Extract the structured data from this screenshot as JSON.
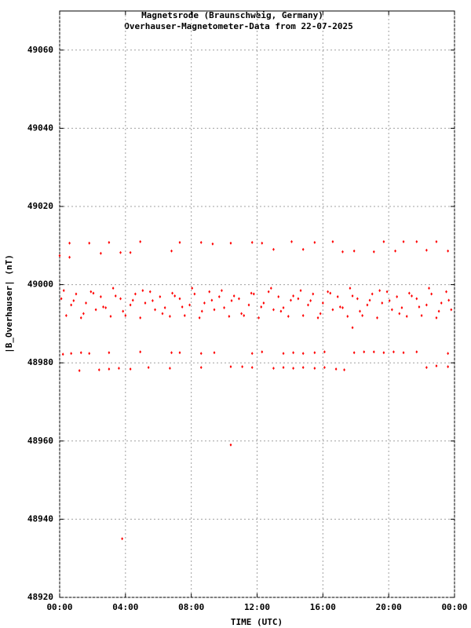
{
  "chart_data": {
    "type": "scatter",
    "title": "Magnetsrode (Braunschweig, Germany)",
    "subtitle": "Overhauser-Magnetometer-Data from 22-07-2025",
    "x_label": "TIME (UTC)",
    "y_label": "|B_Overhauser| (nT)",
    "color": "#ff0000",
    "grid": true,
    "xlim": [
      0,
      24
    ],
    "xticks": [
      {
        "value": 0,
        "label": "00:00"
      },
      {
        "value": 4,
        "label": "04:00"
      },
      {
        "value": 8,
        "label": "08:00"
      },
      {
        "value": 12,
        "label": "12:00"
      },
      {
        "value": 16,
        "label": "16:00"
      },
      {
        "value": 20,
        "label": "20:00"
      },
      {
        "value": 24,
        "label": "00:00"
      }
    ],
    "ylim": [
      48920,
      49070
    ],
    "yticks": [
      48920,
      48940,
      48960,
      48980,
      49000,
      49020,
      49040,
      49060
    ],
    "x": [
      0.0,
      0.6,
      0.6,
      1.8,
      2.5,
      3.0,
      3.7,
      4.3,
      4.9,
      6.8,
      7.3,
      8.6,
      9.3,
      10.4,
      11.7,
      12.3,
      13.0,
      14.1,
      14.8,
      15.5,
      16.6,
      17.2,
      17.9,
      19.1,
      19.7,
      20.4,
      20.9,
      21.7,
      22.3,
      22.9,
      23.6,
      0.2,
      0.7,
      1.3,
      1.8,
      3.0,
      4.9,
      6.8,
      7.3,
      8.6,
      9.4,
      11.7,
      12.3,
      13.6,
      14.2,
      14.8,
      15.5,
      16.1,
      17.9,
      18.5,
      19.1,
      19.7,
      20.3,
      20.9,
      21.7,
      23.6,
      1.2,
      2.4,
      3.0,
      3.6,
      4.3,
      5.4,
      6.7,
      8.6,
      10.4,
      11.1,
      11.7,
      13.0,
      13.6,
      14.2,
      14.8,
      15.5,
      16.1,
      16.8,
      17.3,
      22.3,
      22.9,
      23.6,
      10.4,
      3.8,
      17.8,
      0.1,
      0.4,
      0.7,
      1.0,
      1.3,
      1.6,
      1.9,
      2.2,
      2.5,
      2.8,
      3.1,
      3.4,
      3.7,
      4.0,
      4.3,
      4.6,
      4.9,
      5.2,
      5.5,
      5.8,
      6.1,
      6.4,
      6.7,
      7.0,
      7.3,
      7.6,
      7.9,
      8.2,
      8.5,
      8.8,
      9.1,
      9.4,
      9.7,
      10.0,
      10.3,
      10.6,
      10.9,
      11.2,
      11.5,
      11.8,
      12.1,
      12.4,
      12.7,
      13.0,
      13.3,
      13.6,
      13.9,
      14.2,
      14.5,
      14.8,
      15.1,
      15.4,
      15.7,
      16.0,
      16.3,
      16.6,
      16.9,
      17.2,
      17.5,
      17.8,
      18.1,
      18.4,
      18.7,
      19.0,
      19.3,
      19.6,
      19.9,
      20.2,
      20.5,
      20.8,
      21.1,
      21.4,
      21.7,
      22.0,
      22.3,
      22.6,
      22.9,
      23.2,
      23.5,
      23.8,
      0.25,
      0.85,
      1.45,
      2.05,
      2.65,
      3.25,
      3.85,
      4.45,
      5.05,
      5.65,
      6.25,
      6.85,
      7.45,
      8.05,
      8.65,
      9.25,
      9.85,
      10.45,
      11.05,
      11.65,
      12.25,
      12.85,
      13.45,
      14.05,
      14.65,
      15.25,
      15.85,
      16.45,
      17.05,
      17.65,
      18.25,
      18.85,
      19.45,
      20.05,
      20.65,
      21.25,
      21.85,
      22.45,
      23.05,
      23.65
    ],
    "values": [
      49007.4,
      49010.6,
      49007,
      49010.6,
      49008,
      49010.8,
      49008.2,
      49008.2,
      49011,
      49008.6,
      49010.8,
      49010.8,
      49010.4,
      49010.6,
      49010.8,
      49010.6,
      49009,
      49011,
      49009,
      49010.8,
      49011,
      49008.4,
      49008.6,
      49008.4,
      49011,
      49008.6,
      49011,
      49011,
      49008.8,
      49011,
      49008.6,
      48982.2,
      48982.4,
      48982.6,
      48982.4,
      48982.6,
      48982.8,
      48982.6,
      48982.6,
      48982.4,
      48982.6,
      48982.4,
      48982.8,
      48982.4,
      48982.6,
      48982.4,
      48982.6,
      48982.8,
      48982.6,
      48982.8,
      48982.8,
      48982.6,
      48982.8,
      48982.6,
      48982.8,
      48982.4,
      48978,
      48978.2,
      48978.4,
      48978.6,
      48978.4,
      48978.8,
      48978.6,
      48978.8,
      48979,
      48979,
      48978.8,
      48978.6,
      48978.8,
      48978.6,
      48978.8,
      48978.6,
      48978.8,
      48978.4,
      48978.2,
      48978.8,
      48979.2,
      48979,
      48959,
      48935,
      48989,
      48996.4,
      48992.1,
      48994.8,
      48997.6,
      48991.5,
      48995.3,
      48998.2,
      48993.6,
      48996.9,
      48994.1,
      48991.9,
      48997.1,
      48996.4,
      48992.1,
      48994.8,
      48997.6,
      48991.5,
      48995.3,
      48998.2,
      48993.6,
      48996.9,
      48994.1,
      48991.9,
      48997.1,
      48996.4,
      48992.1,
      48994.8,
      48997.6,
      48991.5,
      48995.3,
      48998.2,
      48993.6,
      48996.9,
      48994.1,
      48991.9,
      48997.1,
      48996.4,
      48992.1,
      48994.8,
      48997.6,
      48991.5,
      48995.3,
      48998.2,
      48993.6,
      48996.9,
      48994.1,
      48991.9,
      48997.1,
      48996.4,
      48992.1,
      48994.8,
      48997.6,
      48991.5,
      48995.3,
      48998.2,
      48993.6,
      48996.9,
      48994.1,
      48991.9,
      48997.1,
      48996.4,
      48992.1,
      48994.8,
      48997.6,
      48991.5,
      48995.3,
      48998.2,
      48993.6,
      48996.9,
      48994.1,
      48991.9,
      48997.1,
      48996.4,
      48992.1,
      48994.8,
      48997.6,
      48991.5,
      48995.3,
      48998.2,
      48993.6,
      48998.5,
      48995.9,
      48992.6,
      48997.8,
      48994.3,
      48999.1,
      48993.2,
      48996.0,
      48998.5,
      48995.9,
      48992.6,
      48997.8,
      48994.3,
      48999.1,
      48993.2,
      48996.0,
      48998.5,
      48995.9,
      48992.6,
      48997.8,
      48994.3,
      48999.1,
      48993.2,
      48996.0,
      48998.5,
      48995.9,
      48992.6,
      48997.8,
      48994.3,
      48999.1,
      48993.2,
      48996.0,
      48998.5,
      48995.9,
      48992.6,
      48997.8,
      48994.3,
      48999.1,
      48993.2,
      48996.0
    ]
  }
}
